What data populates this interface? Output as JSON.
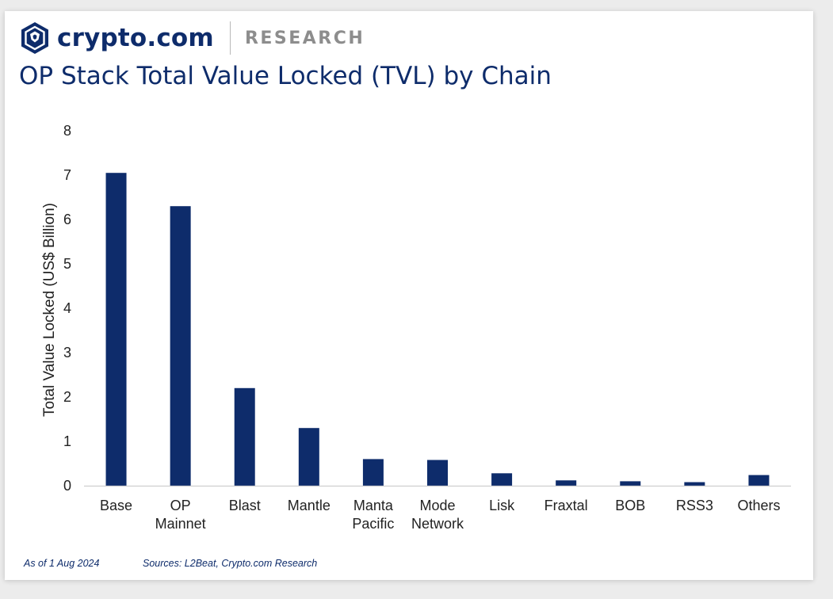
{
  "brand": {
    "name": "crypto.com",
    "section": "RESEARCH",
    "primary_color": "#0e2c6b"
  },
  "title": "OP Stack Total Value Locked (TVL) by Chain",
  "footer": {
    "as_of": "As of 1 Aug 2024",
    "sources": "Sources: L2Beat, Crypto.com Research"
  },
  "chart_data": {
    "type": "bar",
    "title": "OP Stack Total Value Locked (TVL) by Chain",
    "xlabel": "",
    "ylabel": "Total Value Locked (US$ Billion)",
    "categories": [
      [
        "Base"
      ],
      [
        "OP",
        "Mainnet"
      ],
      [
        "Blast"
      ],
      [
        "Mantle"
      ],
      [
        "Manta",
        "Pacific"
      ],
      [
        "Mode",
        "Network"
      ],
      [
        "Lisk"
      ],
      [
        "Fraxtal"
      ],
      [
        "BOB"
      ],
      [
        "RSS3"
      ],
      [
        "Others"
      ]
    ],
    "values": [
      7.05,
      6.3,
      2.2,
      1.3,
      0.6,
      0.58,
      0.28,
      0.12,
      0.1,
      0.08,
      0.24
    ],
    "ylim": [
      0,
      8
    ],
    "yticks": [
      0,
      1,
      2,
      3,
      4,
      5,
      6,
      7,
      8
    ],
    "bar_color": "#0e2c6b",
    "grid": false,
    "legend": "none"
  }
}
